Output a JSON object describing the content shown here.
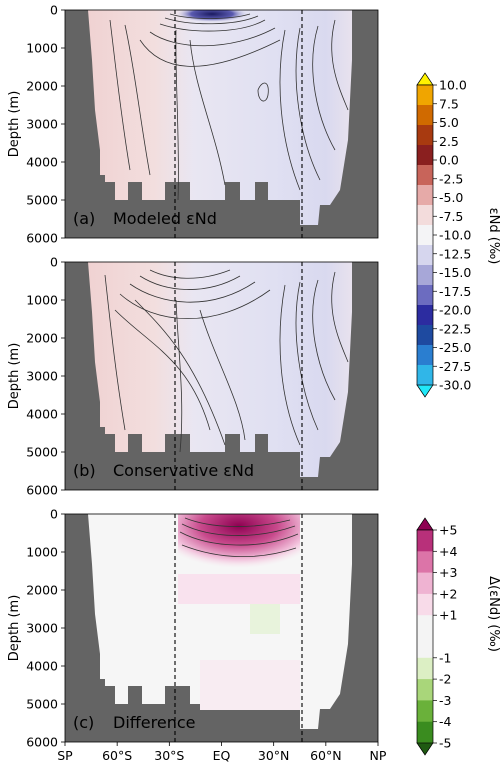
{
  "chart_data": [
    {
      "type": "heatmap",
      "panel_label": "(a)",
      "title": "Modeled εNd",
      "ylabel": "Depth (m)",
      "ylim": [
        6000,
        0
      ],
      "yticks": [
        "0",
        "1000",
        "2000",
        "3000",
        "4000",
        "5000",
        "6000"
      ],
      "dashed_lines_at": [
        "30°S",
        "30°N"
      ]
    },
    {
      "type": "heatmap",
      "panel_label": "(b)",
      "title": "Conservative εNd",
      "ylabel": "Depth (m)",
      "ylim": [
        6000,
        0
      ],
      "yticks": [
        "0",
        "1000",
        "2000",
        "3000",
        "4000",
        "5000",
        "6000"
      ],
      "dashed_lines_at": [
        "30°S",
        "30°N"
      ]
    },
    {
      "type": "heatmap",
      "panel_label": "(c)",
      "title": "Difference",
      "ylabel": "Depth (m)",
      "xlabel": "",
      "xticks": [
        "SP",
        "60°S",
        "30°S",
        "EQ",
        "30°N",
        "60°N",
        "NP"
      ],
      "ylim": [
        6000,
        0
      ],
      "yticks": [
        "0",
        "1000",
        "2000",
        "3000",
        "4000",
        "5000",
        "6000"
      ],
      "dashed_lines_at": [
        "30°S",
        "30°N"
      ]
    }
  ],
  "colorbar_main": {
    "label": "εNd (‰)",
    "ticks": [
      "10.0",
      "7.5",
      "5.0",
      "2.5",
      "0.0",
      "-2.5",
      "-5.0",
      "-7.5",
      "-10.0",
      "-12.5",
      "-15.0",
      "-17.5",
      "-20.0",
      "-22.5",
      "-25.0",
      "-27.5",
      "-30.0"
    ],
    "colors": [
      "#fff200",
      "#f0a500",
      "#d06a00",
      "#a83a10",
      "#8a1f1f",
      "#c8645a",
      "#e6aaa8",
      "#f3dcdc",
      "#f4f4f6",
      "#d6d6ee",
      "#a7a7d8",
      "#6c6cc0",
      "#2c2ca0",
      "#1e4aa0",
      "#2a7ed0",
      "#30b6e8",
      "#20e8f8"
    ]
  },
  "colorbar_diff": {
    "label": "Δ(εNd) (‰)",
    "ticks": [
      "+5",
      "+4",
      "+3",
      "+2",
      "+1",
      "-1",
      "-2",
      "-3",
      "-4",
      "-5"
    ],
    "colors": [
      "#8e0152",
      "#b8307a",
      "#dc74a8",
      "#efb3d2",
      "#f8dbe9",
      "#f4f4f4",
      "#dcefc4",
      "#a9d67a",
      "#6ab13a",
      "#3a8c1f",
      "#1f5a12"
    ]
  },
  "colors": {
    "land": "#646464",
    "contour": "#333333"
  }
}
